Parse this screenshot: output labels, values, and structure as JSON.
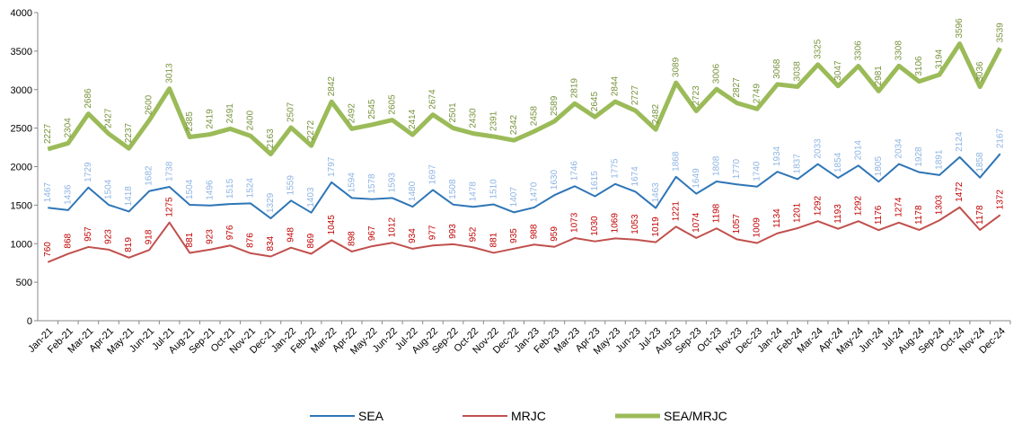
{
  "chart_data": {
    "type": "line",
    "categories": [
      "Jan-21",
      "Feb-21",
      "Mar-21",
      "Apr-21",
      "May-21",
      "Jun-21",
      "Jul-21",
      "Aug-21",
      "Sep-21",
      "Oct-21",
      "Nov-21",
      "Dec-21",
      "Jan-22",
      "Feb-22",
      "Mar-22",
      "Apr-22",
      "May-22",
      "Jun-22",
      "Jul-22",
      "Aug-22",
      "Sep-22",
      "Oct-22",
      "Nov-22",
      "Dec-22",
      "Jan-23",
      "Feb-23",
      "Mar-23",
      "Apr-23",
      "May-23",
      "Jun-23",
      "Jul-23",
      "Aug-23",
      "Sep-23",
      "Oct-23",
      "Nov-23",
      "Dec-23",
      "Jan-24",
      "Feb-24",
      "Mar-24",
      "Apr-24",
      "May-24",
      "Jun-24",
      "Jul-24",
      "Aug-24",
      "Sep-24",
      "Oct-24",
      "Nov-24",
      "Dec-24"
    ],
    "series": [
      {
        "name": "SEA",
        "color": "#2e75b6",
        "label_color": "#8eb4e3",
        "line_width": 2,
        "values": [
          1467,
          1436,
          1729,
          1504,
          1418,
          1682,
          1738,
          1504,
          1496,
          1515,
          1524,
          1329,
          1559,
          1403,
          1797,
          1594,
          1578,
          1593,
          1480,
          1697,
          1508,
          1478,
          1510,
          1407,
          1470,
          1630,
          1746,
          1615,
          1775,
          1674,
          1463,
          1868,
          1649,
          1808,
          1770,
          1740,
          1934,
          1837,
          2033,
          1854,
          2014,
          1805,
          2034,
          1928,
          1891,
          2124,
          1858,
          2167
        ]
      },
      {
        "name": "MRJC",
        "color": "#c0504d",
        "label_color": "#c00000",
        "line_width": 2,
        "values": [
          760,
          868,
          957,
          923,
          819,
          918,
          1275,
          881,
          923,
          976,
          876,
          834,
          948,
          869,
          1045,
          898,
          967,
          1012,
          934,
          977,
          993,
          952,
          881,
          935,
          988,
          959,
          1073,
          1030,
          1069,
          1053,
          1019,
          1221,
          1074,
          1198,
          1057,
          1009,
          1134,
          1201,
          1292,
          1193,
          1292,
          1176,
          1274,
          1178,
          1303,
          1472,
          1178,
          1372
        ]
      },
      {
        "name": "SEA/MRJC",
        "color": "#9bbb59",
        "label_color": "#77933c",
        "line_width": 5,
        "values": [
          2227,
          2304,
          2686,
          2427,
          2237,
          2600,
          3013,
          2385,
          2419,
          2491,
          2400,
          2163,
          2507,
          2272,
          2842,
          2492,
          2545,
          2605,
          2414,
          2674,
          2501,
          2430,
          2391,
          2342,
          2458,
          2589,
          2819,
          2645,
          2844,
          2727,
          2482,
          3089,
          2723,
          3006,
          2827,
          2749,
          3068,
          3038,
          3325,
          3047,
          3306,
          2981,
          3308,
          3106,
          3194,
          3596,
          3036,
          3539
        ]
      }
    ],
    "ylim": [
      0,
      4000
    ],
    "yticks": [
      0,
      500,
      1000,
      1500,
      2000,
      2500,
      3000,
      3500,
      4000
    ],
    "grid": false,
    "legend": "bottom"
  }
}
